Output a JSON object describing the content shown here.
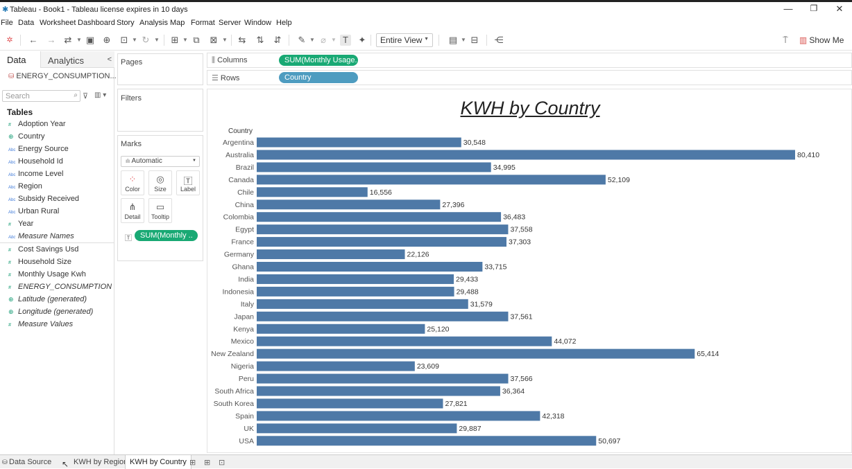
{
  "window": {
    "title": "Tableau - Book1 - Tableau license expires in 10 days",
    "minimize": "—",
    "restore": "❐",
    "close": "✕"
  },
  "menu": [
    "File",
    "Data",
    "Worksheet",
    "Dashboard",
    "Story",
    "Analysis",
    "Map",
    "Format",
    "Server",
    "Window",
    "Help"
  ],
  "toolbar": {
    "fit_select": "Entire View",
    "show_me": "Show Me"
  },
  "data_pane": {
    "tab_data": "Data",
    "tab_analytics": "Analytics",
    "collapse_glyph": "<",
    "datasource": "ENERGY_CONSUMPTION...",
    "search_placeholder": "Search",
    "tables_heading": "Tables",
    "fields": [
      {
        "name": "Adoption Year",
        "type": "#",
        "italic": false
      },
      {
        "name": "Country",
        "type": "geo",
        "italic": false
      },
      {
        "name": "Energy Source",
        "type": "Abc",
        "italic": false
      },
      {
        "name": "Household Id",
        "type": "Abc",
        "italic": false
      },
      {
        "name": "Income Level",
        "type": "Abc",
        "italic": false
      },
      {
        "name": "Region",
        "type": "Abc",
        "italic": false
      },
      {
        "name": "Subsidy Received",
        "type": "Abc",
        "italic": false
      },
      {
        "name": "Urban Rural",
        "type": "Abc",
        "italic": false
      },
      {
        "name": "Year",
        "type": "#",
        "italic": false
      },
      {
        "name": "Measure Names",
        "type": "Abc",
        "italic": true
      },
      {
        "name": "Cost Savings Usd",
        "type": "#",
        "italic": false
      },
      {
        "name": "Household Size",
        "type": "#",
        "italic": false
      },
      {
        "name": "Monthly Usage Kwh",
        "type": "#",
        "italic": false
      },
      {
        "name": "ENERGY_CONSUMPTION (...",
        "type": "#",
        "italic": true
      },
      {
        "name": "Latitude (generated)",
        "type": "geo",
        "italic": true
      },
      {
        "name": "Longitude (generated)",
        "type": "geo",
        "italic": true
      },
      {
        "name": "Measure Values",
        "type": "#",
        "italic": true
      }
    ]
  },
  "cards": {
    "pages": "Pages",
    "filters": "Filters",
    "marks": "Marks",
    "mark_type": "Automatic",
    "buttons": [
      "Color",
      "Size",
      "Label",
      "Detail",
      "Tooltip"
    ],
    "label_pill": "SUM(Monthly .."
  },
  "shelves": {
    "columns_label": "Columns",
    "columns_pill": "SUM(Monthly Usage..",
    "rows_label": "Rows",
    "rows_pill": "Country"
  },
  "sheet_tabs": {
    "data_source": "Data Source",
    "tabs": [
      "KWH by Region",
      "KWH by Country"
    ],
    "active": "KWH by Country"
  },
  "colors": {
    "bar": "#4e79a7",
    "pill_green": "#19a974",
    "pill_blue": "#4e9cc0"
  },
  "chart_data": {
    "type": "bar",
    "orientation": "horizontal",
    "title": "KWH by Country",
    "row_header": "Country",
    "categories": [
      "Argentina",
      "Australia",
      "Brazil",
      "Canada",
      "Chile",
      "China",
      "Colombia",
      "Egypt",
      "France",
      "Germany",
      "Ghana",
      "India",
      "Indonesia",
      "Italy",
      "Japan",
      "Kenya",
      "Mexico",
      "New Zealand",
      "Nigeria",
      "Peru",
      "South Africa",
      "South Korea",
      "Spain",
      "UK",
      "USA"
    ],
    "values": [
      30548,
      80410,
      34995,
      52109,
      16556,
      27396,
      36483,
      37558,
      37303,
      22126,
      33715,
      29433,
      29488,
      31579,
      37561,
      25120,
      44072,
      65414,
      23609,
      37566,
      36364,
      27821,
      42318,
      29887,
      50697
    ],
    "value_labels": [
      "30,548",
      "80,410",
      "34,995",
      "52,109",
      "16,556",
      "27,396",
      "36,483",
      "37,558",
      "37,303",
      "22,126",
      "33,715",
      "29,433",
      "29,488",
      "31,579",
      "37,561",
      "25,120",
      "44,072",
      "65,414",
      "23,609",
      "37,566",
      "36,364",
      "27,821",
      "42,318",
      "29,887",
      "50,697"
    ],
    "grid": false,
    "legend": "none"
  }
}
